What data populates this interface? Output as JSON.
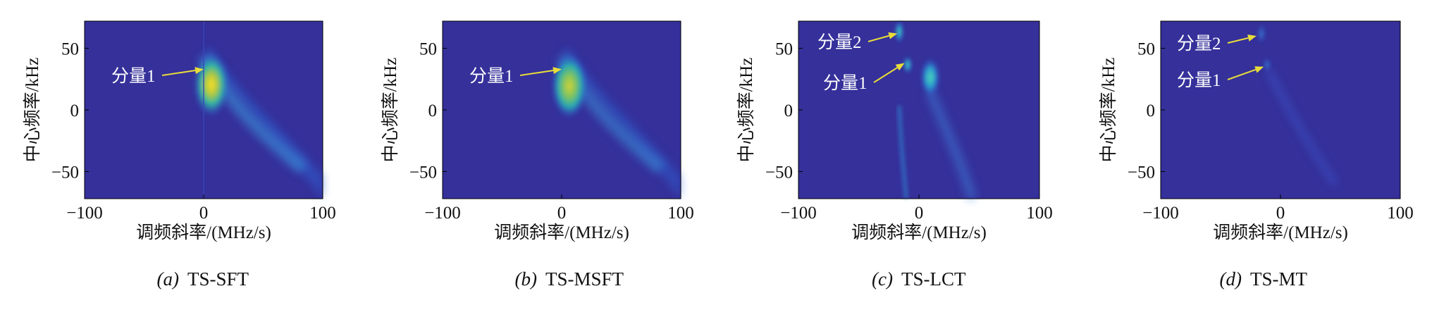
{
  "chart_data": [
    {
      "type": "heatmap",
      "caption_letter": "(a)",
      "caption_name": "TS-SFT",
      "xlabel": "调频斜率/(MHz/s)",
      "ylabel": "中心频率/kHz",
      "xlim": [
        -100,
        100
      ],
      "ylim": [
        -72,
        72
      ],
      "xticks": [
        -100,
        0,
        100
      ],
      "yticks": [
        50,
        0,
        -50
      ],
      "colormap": "parula",
      "annotations": [
        {
          "text": "分量1",
          "point": [
            0,
            33
          ]
        }
      ],
      "features": [
        {
          "x": 4,
          "y": 28,
          "intensity": 1.0
        }
      ]
    },
    {
      "type": "heatmap",
      "caption_letter": "(b)",
      "caption_name": "TS-MSFT",
      "xlabel": "调频斜率/(MHz/s)",
      "ylabel": "中心频率/kHz",
      "xlim": [
        -100,
        100
      ],
      "ylim": [
        -72,
        72
      ],
      "xticks": [
        -100,
        0,
        100
      ],
      "yticks": [
        50,
        0,
        -50
      ],
      "colormap": "parula",
      "annotations": [
        {
          "text": "分量1",
          "point": [
            0,
            33
          ]
        }
      ],
      "features": [
        {
          "x": 5,
          "y": 28,
          "intensity": 0.9
        }
      ]
    },
    {
      "type": "heatmap",
      "caption_letter": "(c)",
      "caption_name": "TS-LCT",
      "xlabel": "调频斜率/(MHz/s)",
      "ylabel": "中心频率/kHz",
      "xlim": [
        -100,
        100
      ],
      "ylim": [
        -72,
        72
      ],
      "xticks": [
        -100,
        0,
        100
      ],
      "yticks": [
        50,
        0,
        -50
      ],
      "colormap": "parula",
      "annotations": [
        {
          "text": "分量2",
          "point": [
            -18,
            62
          ]
        },
        {
          "text": "分量1",
          "point": [
            -12,
            38
          ]
        }
      ],
      "features": [
        {
          "x": -16,
          "y": 62,
          "intensity": 0.75
        },
        {
          "x": -10,
          "y": 37,
          "intensity": 0.55
        },
        {
          "x": 10,
          "y": 28,
          "intensity": 0.6
        }
      ]
    },
    {
      "type": "heatmap",
      "caption_letter": "(d)",
      "caption_name": "TS-MT",
      "xlabel": "调频斜率/(MHz/s)",
      "ylabel": "中心频率/kHz",
      "xlim": [
        -100,
        100
      ],
      "ylim": [
        -72,
        72
      ],
      "xticks": [
        -100,
        0,
        100
      ],
      "yticks": [
        50,
        0,
        -50
      ],
      "colormap": "parula",
      "annotations": [
        {
          "text": "分量2",
          "point": [
            -20,
            60
          ]
        },
        {
          "text": "分量1",
          "point": [
            -14,
            35
          ]
        }
      ],
      "features": [
        {
          "x": -18,
          "y": 60,
          "intensity": 0.45
        },
        {
          "x": -12,
          "y": 36,
          "intensity": 0.35
        }
      ]
    }
  ]
}
